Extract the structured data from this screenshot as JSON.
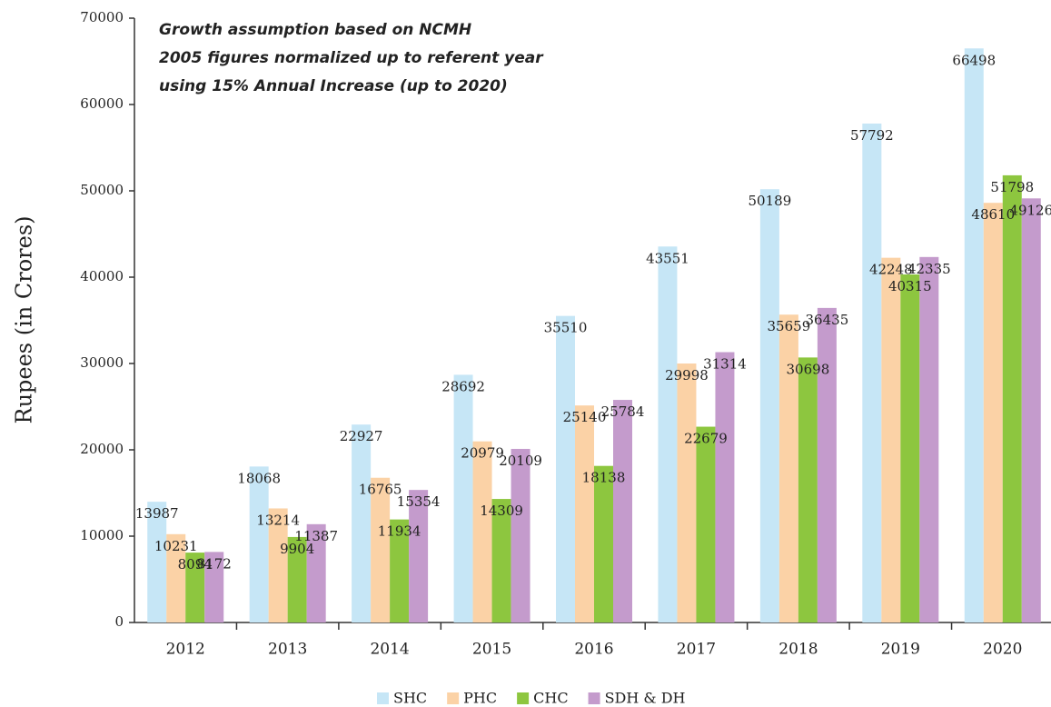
{
  "chart_data": {
    "type": "bar",
    "annotations": [
      "Growth assumption based on NCMH",
      "2005 figures normalized up to referent year",
      "using 15% Annual Increase (up to 2020)"
    ],
    "y_label": "Rupees (in Crores)",
    "categories": [
      "2012",
      "2013",
      "2014",
      "2015",
      "2016",
      "2017",
      "2018",
      "2019",
      "2020"
    ],
    "series": [
      {
        "name": "SHC",
        "color": "#c6e6f6",
        "values": [
          13987,
          18068,
          22927,
          28692,
          35510,
          43551,
          50189,
          57792,
          66498
        ]
      },
      {
        "name": "PHC",
        "color": "#fbd2a6",
        "values": [
          10231,
          13214,
          16765,
          20979,
          25140,
          29998,
          35659,
          42248,
          48610
        ]
      },
      {
        "name": "CHC",
        "color": "#8dc63f",
        "values": [
          8094,
          9904,
          11934,
          14309,
          18138,
          22679,
          30698,
          40315,
          51798
        ]
      },
      {
        "name": "SDH & DH",
        "color": "#c49bcc",
        "values": [
          8172,
          11387,
          15354,
          20109,
          25784,
          31314,
          36435,
          42335,
          49126
        ]
      }
    ],
    "ylim": [
      0,
      70000
    ],
    "yticks": [
      0,
      10000,
      20000,
      30000,
      40000,
      50000,
      60000,
      70000
    ],
    "legend": "bottom"
  }
}
